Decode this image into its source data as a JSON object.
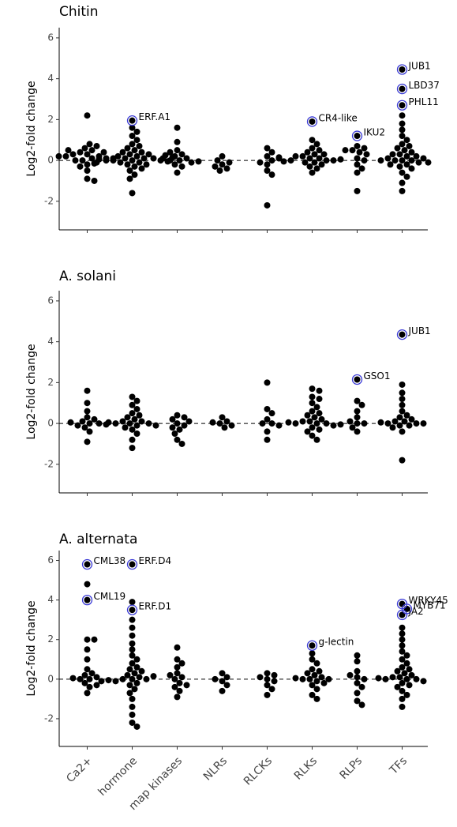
{
  "chart_data": [
    {
      "type": "strip",
      "title": "Chitin",
      "ylabel": "Log2-fold change",
      "ylim": [
        -3.4,
        6.5
      ],
      "yticks": [
        -2,
        0,
        2,
        4,
        6
      ],
      "hline": 0,
      "color": "#000000",
      "highlight_color": "#3a3ad6",
      "values": [
        [
          0.3,
          0.1,
          -0.2,
          0.5,
          0.4,
          0.2,
          0,
          -0.1,
          0.6,
          0.3,
          -0.5,
          0.8,
          2.2,
          0.1,
          -0.9,
          -1.0,
          0.2,
          0.4,
          0.0,
          0.7,
          -0.3,
          0.1,
          0.5,
          0.2
        ],
        [
          1.95,
          1.6,
          1.2,
          1.0,
          0.8,
          0.7,
          0.6,
          0.5,
          0.4,
          0.4,
          0.3,
          0.3,
          0.2,
          0.2,
          0.1,
          0.1,
          0.1,
          0,
          0,
          0,
          0,
          -0.1,
          -0.1,
          -0.2,
          -0.2,
          -0.3,
          -0.4,
          -0.5,
          -0.7,
          -0.9,
          -1.6,
          0.05,
          -0.05,
          0.15,
          -0.15,
          0.25,
          1.4
        ],
        [
          1.6,
          0.9,
          0.5,
          0.3,
          0.2,
          0.1,
          0,
          0,
          -0.1,
          -0.2,
          -0.3,
          -0.6,
          0.4,
          0.1,
          -0.05
        ],
        [
          0.2,
          -0.2,
          -0.4,
          -0.5,
          -0.1,
          0.0,
          -0.3
        ],
        [
          0.6,
          0.4,
          0.2,
          0,
          -0.2,
          -0.5,
          -0.7,
          -2.2,
          -0.1,
          0.1
        ],
        [
          1.9,
          1.0,
          0.8,
          0.6,
          0.5,
          0.4,
          0.3,
          0.3,
          0.2,
          0.2,
          0.1,
          0.1,
          0,
          0,
          0,
          -0.1,
          -0.1,
          -0.2,
          -0.3,
          -0.4,
          -0.6,
          0.05,
          -0.05,
          0.15
        ],
        [
          1.2,
          0.7,
          0.6,
          0.5,
          0.4,
          0.3,
          0.1,
          0,
          -0.2,
          -0.4,
          -0.6,
          -1.5,
          0.5
        ],
        [
          4.45,
          3.5,
          2.7,
          2.2,
          1.8,
          1.5,
          1.2,
          1.0,
          0.8,
          0.7,
          0.6,
          0.5,
          0.4,
          0.3,
          0.3,
          0.2,
          0.2,
          0.1,
          0.1,
          0,
          0,
          0,
          0,
          -0.1,
          -0.1,
          -0.2,
          -0.2,
          -0.3,
          -0.4,
          -0.6,
          -0.8,
          -1.1,
          -1.5
        ]
      ],
      "annotations": [
        {
          "label": "ERF.A1",
          "category": "hormone",
          "value": 1.95
        },
        {
          "label": "CR4-like",
          "category": "RLKs",
          "value": 1.9
        },
        {
          "label": "IKU2",
          "category": "RLPs",
          "value": 1.2
        },
        {
          "label": "JUB1",
          "category": "TFs",
          "value": 4.45
        },
        {
          "label": "LBD37",
          "category": "TFs",
          "value": 3.5
        },
        {
          "label": "PHL11",
          "category": "TFs",
          "value": 2.7
        }
      ]
    },
    {
      "type": "strip",
      "title": "A. solani",
      "ylabel": "Log2-fold change",
      "ylim": [
        -3.4,
        6.5
      ],
      "yticks": [
        -2,
        0,
        2,
        4,
        6
      ],
      "hline": 0,
      "color": "#000000",
      "highlight_color": "#3a3ad6",
      "values": [
        [
          1.6,
          1.0,
          0.6,
          0.3,
          0.2,
          0.1,
          0,
          0,
          -0.1,
          -0.2,
          -0.4,
          -0.9,
          0.05,
          -0.05
        ],
        [
          1.3,
          1.1,
          0.9,
          0.7,
          0.5,
          0.4,
          0.3,
          0.2,
          0.1,
          0.1,
          0,
          0,
          0,
          -0.1,
          -0.1,
          -0.2,
          -0.3,
          -0.5,
          -0.8,
          -1.2,
          0.05
        ],
        [
          0.4,
          0.3,
          0.2,
          0,
          -0.1,
          -0.2,
          -0.3,
          -0.5,
          -0.8,
          -1.0,
          0.1
        ],
        [
          0.3,
          0.1,
          0,
          -0.1,
          -0.2,
          0.05
        ],
        [
          2.0,
          0.7,
          0.5,
          0.2,
          0,
          0,
          -0.1,
          -0.4,
          -0.8
        ],
        [
          1.7,
          1.6,
          1.3,
          1.0,
          0.8,
          0.6,
          0.5,
          0.4,
          0.3,
          0.2,
          0.1,
          0.1,
          0,
          0,
          0,
          -0.1,
          -0.2,
          -0.3,
          -0.4,
          -0.6,
          -0.8,
          0.05,
          -0.05,
          1.2
        ],
        [
          2.15,
          1.1,
          0.9,
          0.6,
          0.3,
          0,
          0,
          -0.2,
          -0.4,
          0.1
        ],
        [
          4.35,
          1.9,
          1.5,
          1.2,
          0.9,
          0.6,
          0.4,
          0.3,
          0.2,
          0.1,
          0.1,
          0,
          0,
          0,
          -0.1,
          -0.1,
          -0.2,
          -0.4,
          -1.8,
          0.05
        ]
      ],
      "annotations": [
        {
          "label": "GSO1",
          "category": "RLPs",
          "value": 2.15
        },
        {
          "label": "JUB1",
          "category": "TFs",
          "value": 4.35
        }
      ]
    },
    {
      "type": "strip",
      "title": "A. alternata",
      "ylabel": "Log2-fold change",
      "ylim": [
        -3.4,
        6.5
      ],
      "yticks": [
        -2,
        0,
        2,
        4,
        6
      ],
      "hline": 0,
      "color": "#000000",
      "highlight_color": "#3a3ad6",
      "categories": [
        "Ca2+",
        "hormone",
        "map kinases",
        "NLRs",
        "RLCKs",
        "RLKs",
        "RLPs",
        "TFs"
      ],
      "values": [
        [
          5.8,
          4.8,
          4.0,
          2.0,
          2.0,
          1.5,
          1.0,
          0.5,
          0.3,
          0.2,
          0.1,
          0,
          0,
          -0.1,
          -0.2,
          -0.4,
          -0.7,
          0.05,
          -0.3
        ],
        [
          5.8,
          3.5,
          3.9,
          3.0,
          2.6,
          2.2,
          1.8,
          1.5,
          1.2,
          1.0,
          0.8,
          0.6,
          0.5,
          0.4,
          0.3,
          0.2,
          0.1,
          0,
          0,
          0,
          -0.1,
          -0.2,
          -0.3,
          -0.5,
          -0.7,
          -1.0,
          -1.4,
          -1.8,
          -2.2,
          -2.4,
          0.15,
          -0.05
        ],
        [
          1.6,
          1.0,
          0.8,
          0.6,
          0.3,
          0.1,
          0,
          -0.2,
          -0.4,
          -0.6,
          -0.9,
          -0.3,
          0.2
        ],
        [
          0.3,
          0.1,
          -0.1,
          -0.3,
          -0.6,
          0.0
        ],
        [
          0.3,
          0.2,
          0,
          -0.1,
          -0.3,
          -0.5,
          -0.8,
          0.1
        ],
        [
          1.7,
          1.3,
          1.0,
          0.8,
          0.5,
          0.4,
          0.3,
          0.2,
          0.1,
          0,
          0,
          0,
          -0.1,
          -0.2,
          -0.3,
          -0.5,
          -0.8,
          -1.0,
          0.05
        ],
        [
          1.2,
          0.9,
          0.4,
          0.1,
          0,
          -0.2,
          -0.4,
          -0.7,
          -1.1,
          -1.3,
          0.2
        ],
        [
          3.8,
          3.55,
          3.25,
          2.6,
          2.3,
          2.0,
          1.7,
          1.4,
          1.2,
          1.0,
          0.8,
          0.6,
          0.5,
          0.4,
          0.3,
          0.2,
          0.1,
          0.1,
          0,
          0,
          0,
          -0.1,
          -0.2,
          -0.3,
          -0.4,
          -0.6,
          -0.8,
          -1.0,
          -1.4,
          0.05
        ]
      ],
      "annotations": [
        {
          "label": "CML38",
          "category": "Ca2+",
          "value": 5.8
        },
        {
          "label": "CML19",
          "category": "Ca2+",
          "value": 4.0
        },
        {
          "label": "ERF.D4",
          "category": "hormone",
          "value": 5.8
        },
        {
          "label": "ERF.D1",
          "category": "hormone",
          "value": 3.5
        },
        {
          "label": "g-lectin",
          "category": "RLKs",
          "value": 1.7
        },
        {
          "label": "WRKY45",
          "category": "TFs",
          "value": 3.8
        },
        {
          "label": "MYB71",
          "category": "TFs",
          "value": 3.55
        },
        {
          "label": "JA2",
          "category": "TFs",
          "value": 3.25
        }
      ]
    }
  ]
}
